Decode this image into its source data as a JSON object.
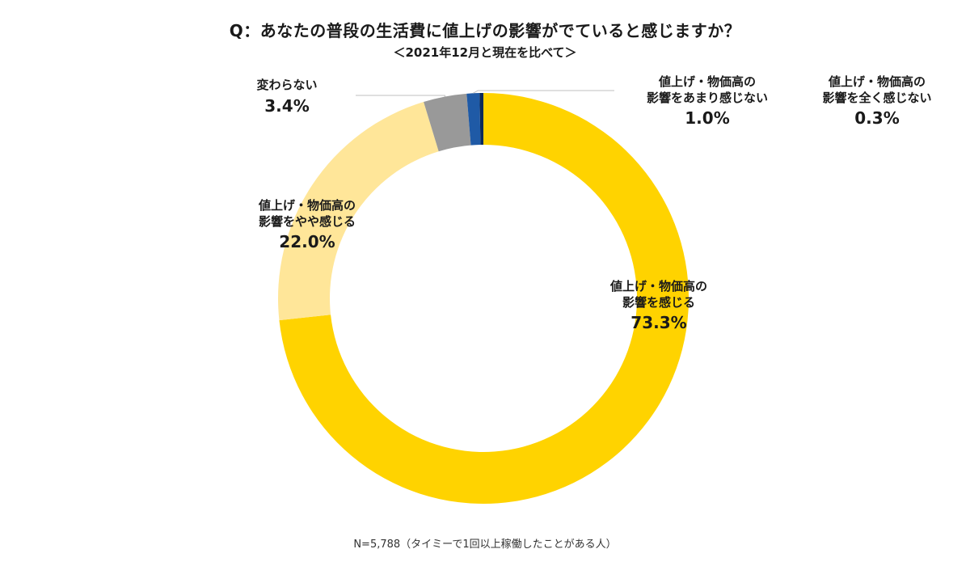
{
  "title": "Q：あなたの普段の生活費に値上げの影響がでていると感じますか？",
  "subtitle": "＜2021年12月と現在を比べて＞",
  "note": "N=5,788（タイミーで1回以上稼働したことがある人）",
  "chart_data": {
    "type": "pie",
    "style": "donut",
    "title": "Q：あなたの普段の生活費に値上げの影響がでていると感じますか？",
    "subtitle": "＜2021年12月と現在を比べて＞",
    "categories": [
      "値上げ・物価高の\n影響を感じる",
      "値上げ・物価高の\n影響をやや感じる",
      "変わらない",
      "値上げ・物価高の\n影響をあまり感じない",
      "値上げ・物価高の\n影響を全く感じない"
    ],
    "values": [
      73.3,
      22.0,
      3.4,
      1.0,
      0.3
    ],
    "value_labels": [
      "73.3%",
      "22.0%",
      "3.4%",
      "1.0%",
      "0.3%"
    ],
    "colors": [
      "#FFD300",
      "#FFE699",
      "#999999",
      "#1F5AA6",
      "#0B2A5B"
    ],
    "direction": "clockwise",
    "start": "top"
  }
}
